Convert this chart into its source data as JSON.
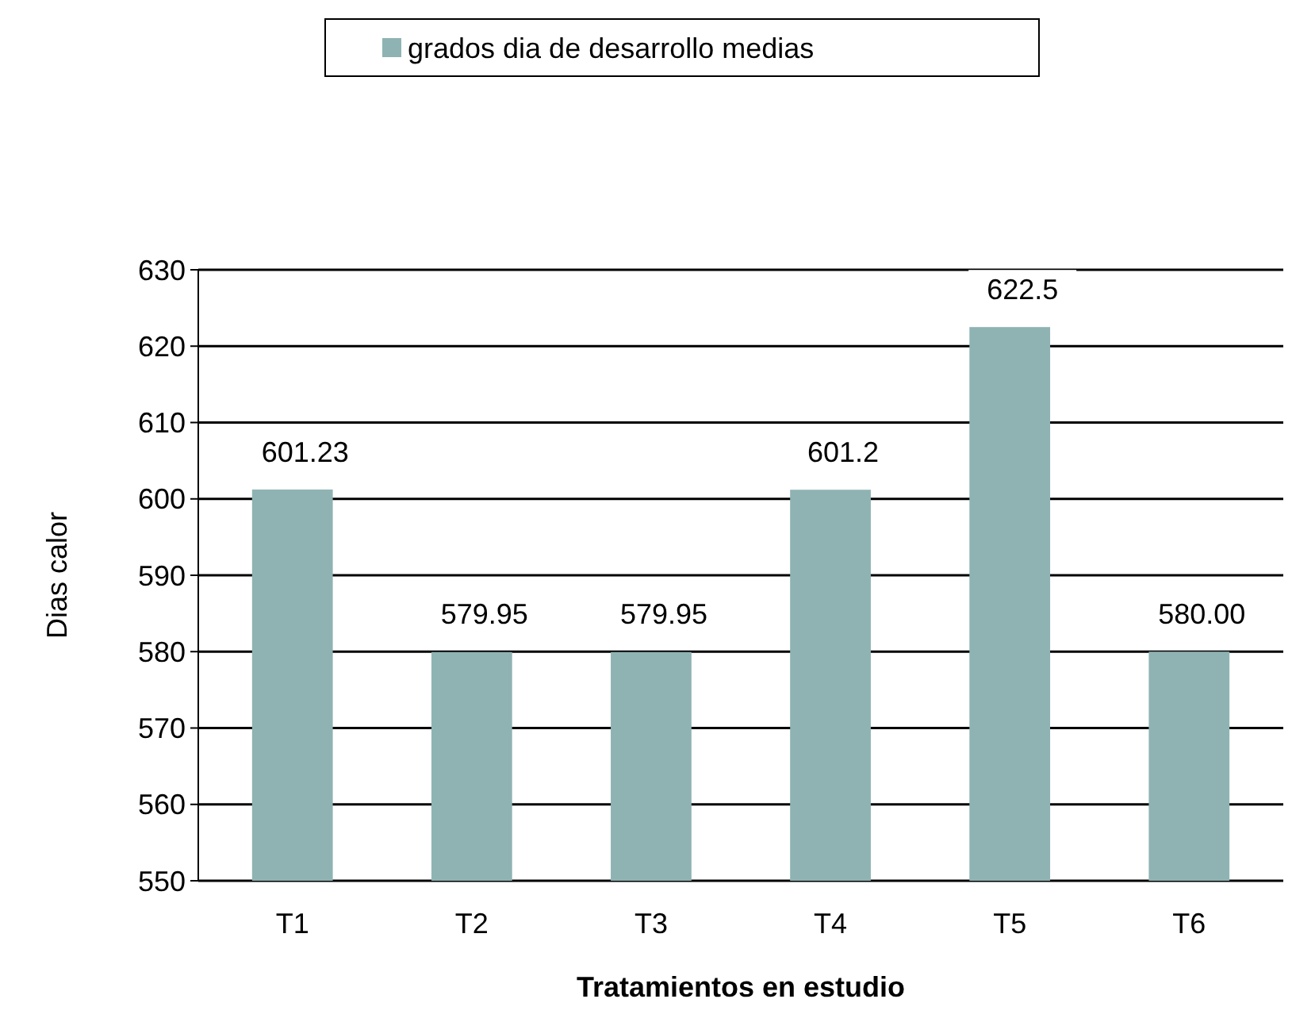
{
  "chart_data": {
    "type": "bar",
    "xlabel": "Tratamientos en estudio",
    "ylabel": "Dias calor",
    "categories": [
      "T1",
      "T2",
      "T3",
      "T4",
      "T5",
      "T6"
    ],
    "series": [
      {
        "name": "grados dia de desarrollo medias",
        "color": "#8fb3b3",
        "values": [
          601.23,
          579.95,
          579.95,
          601.2,
          622.5,
          580.0
        ],
        "value_labels": [
          "601.23",
          "579.95",
          "579.95",
          "601.2",
          "622.5",
          "580.00"
        ]
      }
    ],
    "ylim": [
      550,
      630
    ],
    "yticks": [
      550,
      560,
      570,
      580,
      590,
      600,
      610,
      620,
      630
    ],
    "grid": "y",
    "legend": "top"
  }
}
